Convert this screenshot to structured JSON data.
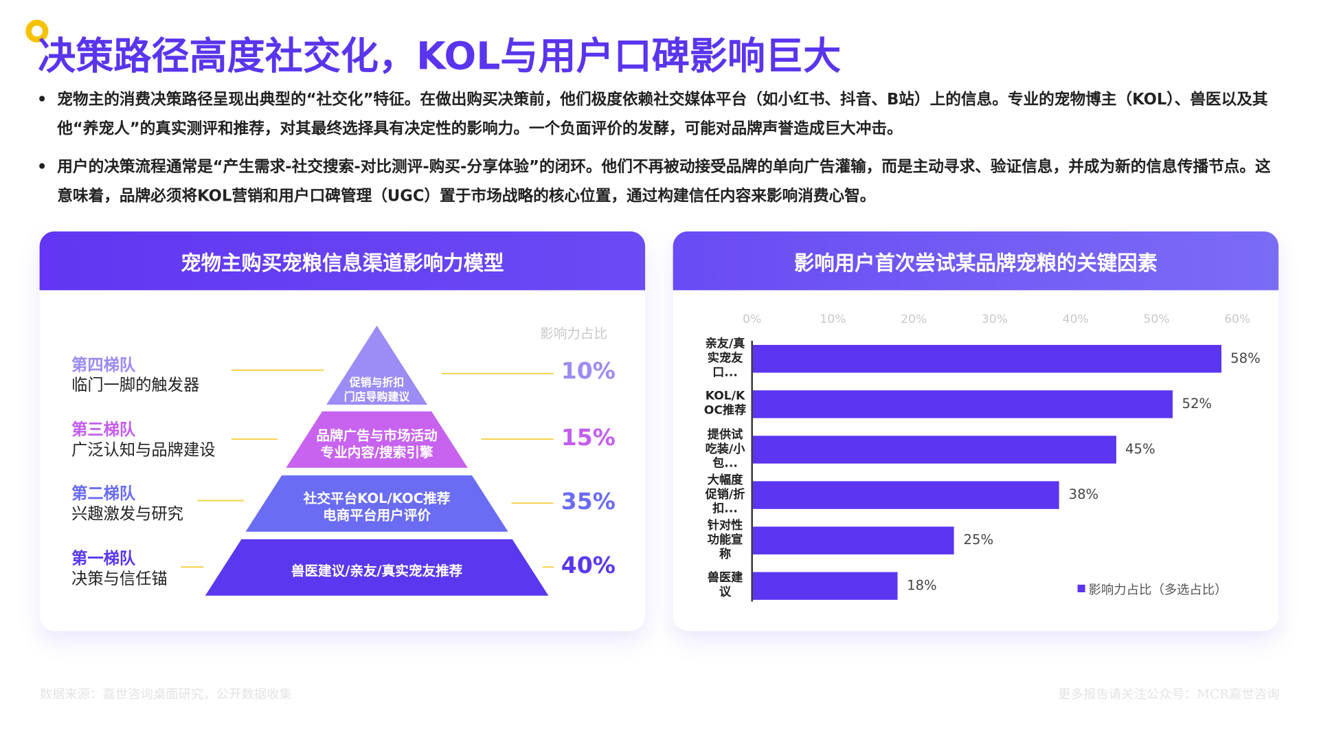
{
  "header": {
    "title": "决策路径高度社交化，KOL与用户口碑影响巨大"
  },
  "bullets": [
    "宠物主的消费决策路径呈现出典型的“社交化”特征。在做出购买决策前，他们极度依赖社交媒体平台（如小红书、抖音、B站）上的信息。专业的宠物博主（KOL）、兽医以及其他“养宠人”的真实测评和推荐，对其最终选择具有决定性的影响力。一个负面评价的发酵，可能对品牌声誉造成巨大冲击。",
    "用户的决策流程通常是“产生需求-社交搜索-对比测评-购买-分享体验”的闭环。他们不再被动接受品牌的单向广告灌输，而是主动寻求、验证信息，并成为新的信息传播节点。这意味着，品牌必须将KOL营销和用户口碑管理（UGC）置于市场战略的核心位置，通过构建信任内容来影响消费心智。"
  ],
  "pyramid": {
    "title": "宠物主购买宠粮信息渠道影响力模型",
    "share_label": "影响力占比",
    "tiers": [
      {
        "name": "第四梯队",
        "desc": "临门一脚的触发器",
        "channels": [
          "促销与折扣",
          "门店导购建议"
        ],
        "share": "10%"
      },
      {
        "name": "第三梯队",
        "desc": "广泛认知与品牌建设",
        "channels": [
          "品牌广告与市场活动",
          "专业内容/搜索引擎"
        ],
        "share": "15%"
      },
      {
        "name": "第二梯队",
        "desc": "兴趣激发与研究",
        "channels": [
          "社交平台KOL/KOC推荐",
          "电商平台用户评价"
        ],
        "share": "35%"
      },
      {
        "name": "第一梯队",
        "desc": "决策与信任锚",
        "channels": [
          "兽医建议/亲友/真实宠友推荐"
        ],
        "share": "40%"
      }
    ]
  },
  "chart_data": {
    "type": "bar",
    "orientation": "horizontal",
    "title": "影响用户首次尝试某品牌宠粮的关键因素",
    "categories": [
      "亲友/真实宠友口...",
      "KOL/KOC推荐",
      "提供试吃装/小包...",
      "大幅度促销/折扣...",
      "针对性功能宣称",
      "兽医建议"
    ],
    "series": [
      {
        "name": "影响力占比（多选占比）",
        "color": "#5b35f0",
        "values": [
          58,
          52,
          45,
          38,
          25,
          18
        ],
        "value_labels": [
          "58%",
          "52%",
          "45%",
          "38%",
          "25%",
          "18%"
        ]
      }
    ],
    "xlim": [
      0,
      60
    ],
    "xticks": [
      {
        "value": 0,
        "label": "0%"
      },
      {
        "value": 10,
        "label": "10%"
      },
      {
        "value": 20,
        "label": "20%"
      },
      {
        "value": 30,
        "label": "30%"
      },
      {
        "value": 40,
        "label": "40%"
      },
      {
        "value": 50,
        "label": "50%"
      },
      {
        "value": 60,
        "label": "60%"
      }
    ],
    "legend": "bottom-right"
  },
  "footer": {
    "source": "数据来源：嘉世咨询桌面研究，公开数据收集",
    "note": "更多报告请关注公众号：MCR嘉世咨询"
  }
}
